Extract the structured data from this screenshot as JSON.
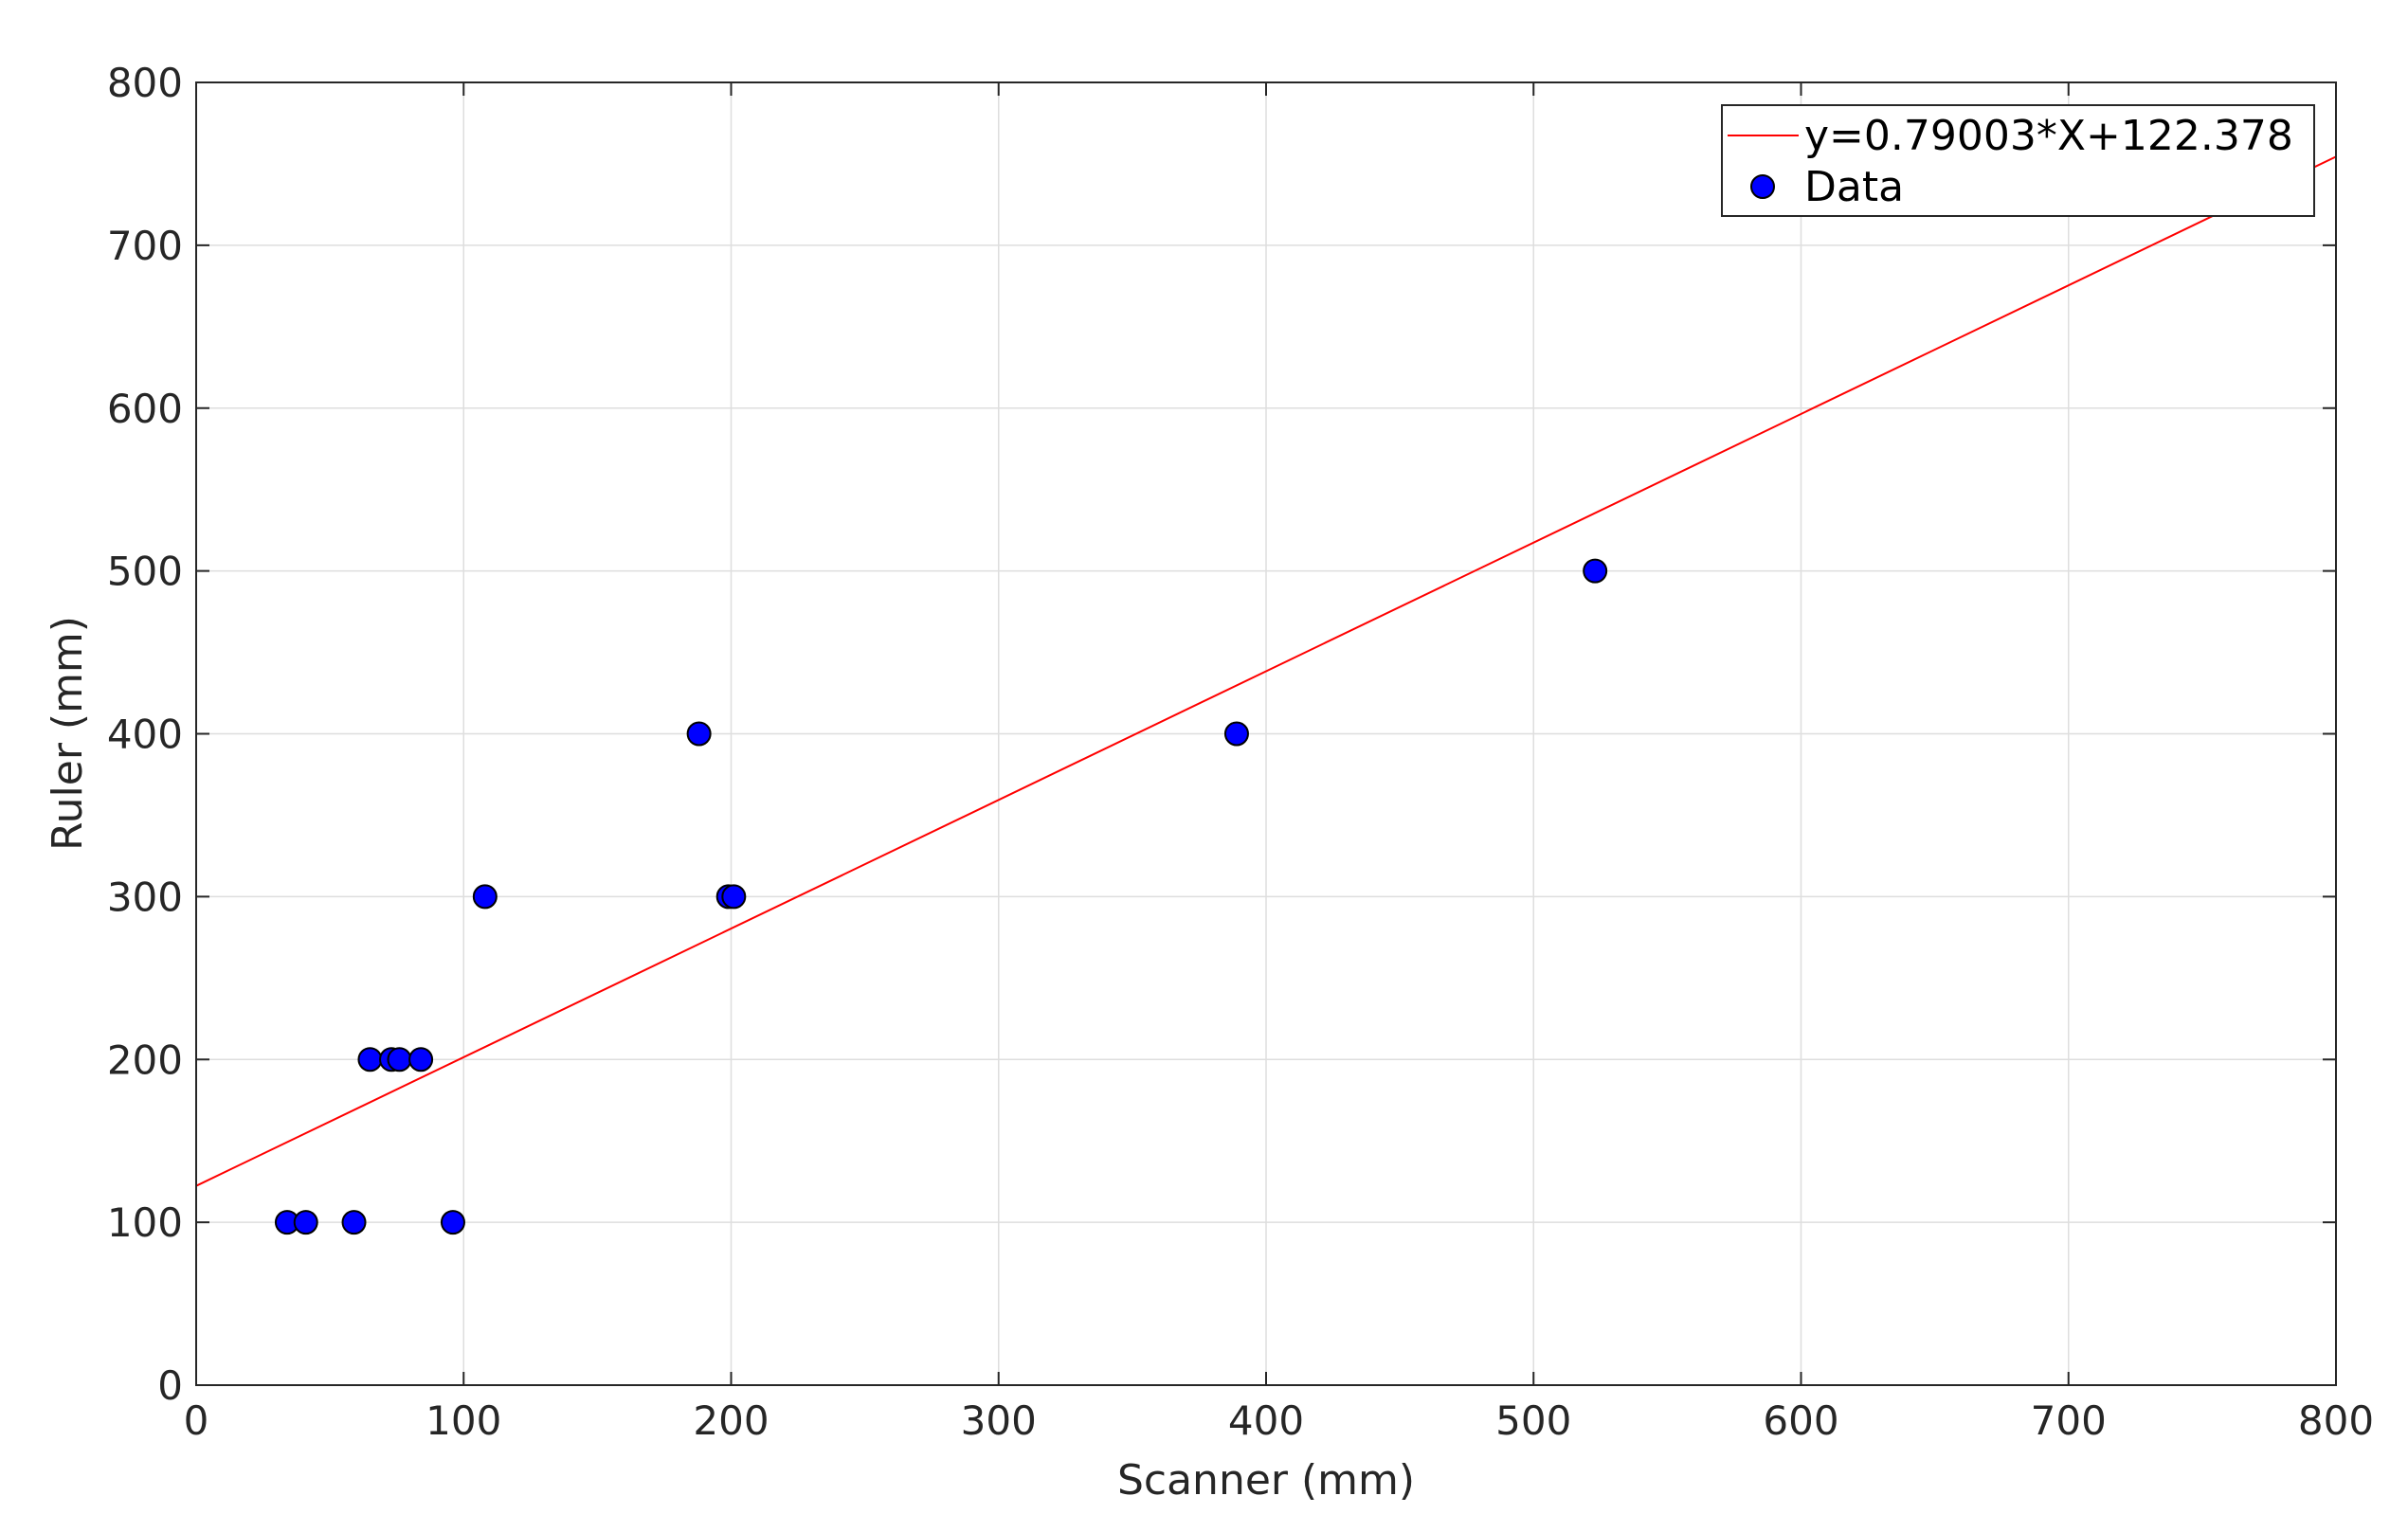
{
  "chart_data": {
    "type": "scatter",
    "title": "",
    "xlabel": "Scanner (mm)",
    "ylabel": "Ruler (mm)",
    "xlim": [
      0,
      800
    ],
    "ylim": [
      0,
      800
    ],
    "xticks": [
      0,
      100,
      200,
      300,
      400,
      500,
      600,
      700,
      800
    ],
    "yticks": [
      0,
      100,
      200,
      300,
      400,
      500,
      600,
      700,
      800
    ],
    "grid": true,
    "legend_position": "top-right",
    "series": [
      {
        "name": "Data",
        "kind": "points",
        "color": "#0000ff",
        "x": [
          34,
          41,
          59,
          65,
          73,
          76,
          84,
          96,
          108,
          188,
          199,
          201,
          389,
          523
        ],
        "y": [
          100,
          100,
          100,
          200,
          200,
          200,
          200,
          100,
          300,
          400,
          300,
          300,
          400,
          500
        ]
      },
      {
        "name": "y=0.79003*X+122.378",
        "kind": "fit-line",
        "color": "#ff0000",
        "slope": 0.79003,
        "intercept": 122.378
      }
    ]
  }
}
